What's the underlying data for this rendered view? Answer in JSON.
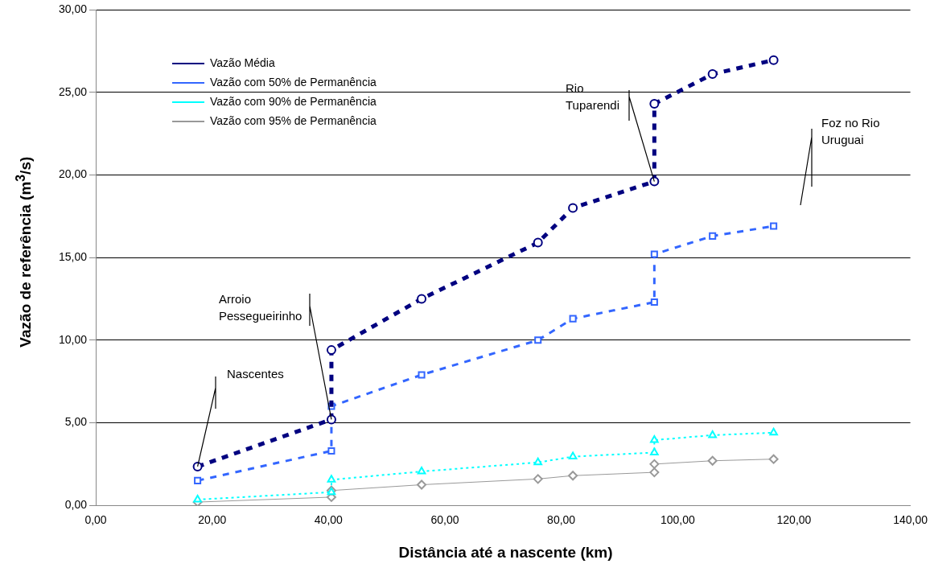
{
  "chart_data": {
    "type": "line",
    "xlabel": "Distância até a nascente (km)",
    "ylabel": "Vazão de referência (m$^{3}$/s)",
    "xlim": [
      0,
      140
    ],
    "xticks": [
      {
        "value": 0,
        "label": "0,00"
      },
      {
        "value": 20,
        "label": "20,00"
      },
      {
        "value": 40,
        "label": "40,00"
      },
      {
        "value": 60,
        "label": "60,00"
      },
      {
        "value": 80,
        "label": "80,00"
      },
      {
        "value": 100,
        "label": "100,00"
      },
      {
        "value": 120,
        "label": "120,00"
      },
      {
        "value": 140,
        "label": "140,00"
      }
    ],
    "ylim": [
      0,
      30
    ],
    "yticks": [
      {
        "value": 0,
        "label": "0,00"
      },
      {
        "value": 5,
        "label": "5,00"
      },
      {
        "value": 10,
        "label": "10,00"
      },
      {
        "value": 15,
        "label": "15,00"
      },
      {
        "value": 20,
        "label": "20,00"
      },
      {
        "value": 25,
        "label": "25,00"
      },
      {
        "value": 30,
        "label": "30,00"
      }
    ],
    "grid": "y",
    "legend": "top left",
    "x": [
      17.5,
      40.5,
      40.5,
      56,
      76,
      82,
      96,
      96,
      106,
      116.5
    ],
    "series": [
      {
        "name": "Vazão Média",
        "color": "#000080",
        "marker": "circle",
        "line_style": "dashed",
        "values": [
          2.35,
          5.2,
          9.4,
          12.5,
          15.9,
          18.0,
          19.6,
          24.3,
          26.1,
          26.95
        ]
      },
      {
        "name": "Vazão com 50% de Permanência",
        "color": "#3366ff",
        "marker": "square",
        "line_style": "dashed",
        "values": [
          1.5,
          3.3,
          6.0,
          7.9,
          10.0,
          11.3,
          12.3,
          15.2,
          16.3,
          16.9
        ]
      },
      {
        "name": "Vazão com 90% de Permanência",
        "color": "#00ffff",
        "marker": "triangle",
        "line_style": "dotted",
        "values": [
          0.35,
          0.8,
          1.55,
          2.05,
          2.6,
          2.95,
          3.2,
          3.95,
          4.25,
          4.4
        ]
      },
      {
        "name": "Vazão com 95% de Permanência",
        "color": "#999999",
        "marker": "diamond",
        "line_style": "solid",
        "values": [
          0.2,
          0.5,
          0.9,
          1.25,
          1.6,
          1.8,
          2.0,
          2.5,
          2.7,
          2.8
        ]
      }
    ],
    "annotations": [
      {
        "text": "Nascentes",
        "x": 17.5,
        "y": 2.35
      },
      {
        "text": "Arroio\nPessegueirinho",
        "x": 40.5,
        "y": 5.2
      },
      {
        "text": "Rio\nTuparendi",
        "x": 96,
        "y": 19.6
      },
      "Foz no Rio\nUruguai"
    ]
  }
}
